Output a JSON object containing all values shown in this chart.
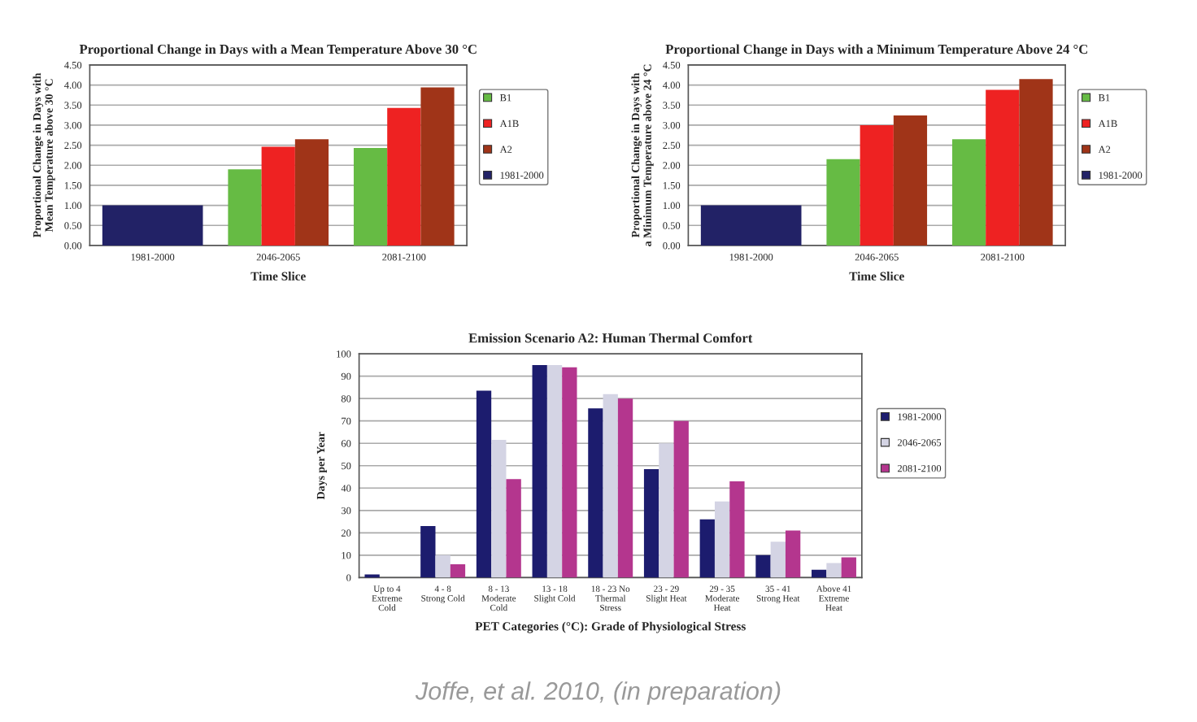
{
  "chart_data": [
    {
      "type": "bar",
      "title": "Proportional Change in Days with a Mean Temperature Above 30 °C",
      "xlabel": "Time Slice",
      "ylabel": "Proportional Change in Days with Mean Temperature above 30 °C",
      "categories": [
        "1981-2000",
        "2046-2065",
        "2081-2100"
      ],
      "series": [
        {
          "name": "B1",
          "color": "#66bb44",
          "values": [
            null,
            1.9,
            2.43
          ]
        },
        {
          "name": "A1B",
          "color": "#ee2222",
          "values": [
            null,
            2.46,
            3.43
          ]
        },
        {
          "name": "A2",
          "color": "#a03418",
          "values": [
            null,
            2.65,
            3.94
          ]
        },
        {
          "name": "1981-2000",
          "color": "#222266",
          "values": [
            1.0,
            null,
            null
          ]
        }
      ],
      "ylim": [
        0,
        4.5
      ],
      "yticks": [
        {
          "value": 0,
          "label": "0.00"
        },
        {
          "value": 0.5,
          "label": "0.50"
        },
        {
          "value": 1,
          "label": "1.00"
        },
        {
          "value": 1.5,
          "label": "1.50"
        },
        {
          "value": 2,
          "label": "2.00"
        },
        {
          "value": 2.5,
          "label": "2.50"
        },
        {
          "value": 3,
          "label": "3.00"
        },
        {
          "value": 3.5,
          "label": "3.50"
        },
        {
          "value": 4,
          "label": "4.00"
        },
        {
          "value": 4.5,
          "label": "4.50"
        }
      ],
      "grid": "y",
      "legend": "right"
    },
    {
      "type": "bar",
      "title": "Proportional Change in Days with a Minimum Temperature Above 24 °C",
      "xlabel": "Time Slice",
      "ylabel": "Proportional Change in Days with a Minimum Temperature above 24 °C",
      "categories": [
        "1981-2000",
        "2046-2065",
        "2081-2100"
      ],
      "series": [
        {
          "name": "B1",
          "color": "#66bb44",
          "values": [
            null,
            2.15,
            2.65
          ]
        },
        {
          "name": "A1B",
          "color": "#ee2222",
          "values": [
            null,
            3.0,
            3.88
          ]
        },
        {
          "name": "A2",
          "color": "#a03418",
          "values": [
            null,
            3.24,
            4.15
          ]
        },
        {
          "name": "1981-2000",
          "color": "#222266",
          "values": [
            1.0,
            null,
            null
          ]
        }
      ],
      "ylim": [
        0,
        4.5
      ],
      "yticks": [
        {
          "value": 0,
          "label": "0.00"
        },
        {
          "value": 0.5,
          "label": "0.50"
        },
        {
          "value": 1,
          "label": "1.00"
        },
        {
          "value": 1.5,
          "label": "1.50"
        },
        {
          "value": 2,
          "label": "2.00"
        },
        {
          "value": 2.5,
          "label": "2.50"
        },
        {
          "value": 3,
          "label": "3.00"
        },
        {
          "value": 3.5,
          "label": "3.50"
        },
        {
          "value": 4,
          "label": "4.00"
        },
        {
          "value": 4.5,
          "label": "4.50"
        }
      ],
      "grid": "y",
      "legend": "right"
    },
    {
      "type": "bar",
      "title": "Emission Scenario A2: Human Thermal Comfort",
      "xlabel": "PET Categories (°C): Grade of Physiological Stress",
      "ylabel": "Days per Year",
      "categories": [
        "Up to 4 Extreme Cold",
        "4 - 8 Strong Cold",
        "8 - 13 Moderate Cold",
        "13 - 18 Slight Cold",
        "18 - 23 No Thermal Stress",
        "23 - 29 Slight Heat",
        "29 - 35 Moderate Heat",
        "35 - 41 Strong Heat",
        "Above 41 Extreme Heat"
      ],
      "series": [
        {
          "name": "1981-2000",
          "color": "#1c1c6e",
          "values": [
            1.4,
            23,
            83.5,
            95,
            75.6,
            48.5,
            26,
            10,
            3.5
          ]
        },
        {
          "name": "2046-2065",
          "color": "#d4d4e4",
          "values": [
            0,
            10,
            61.5,
            95,
            82,
            60,
            34,
            16,
            6.5
          ]
        },
        {
          "name": "2081-2100",
          "color": "#b4368e",
          "values": [
            0,
            6,
            44,
            94,
            80,
            70,
            43,
            21,
            9
          ]
        }
      ],
      "ylim": [
        0,
        100
      ],
      "yticks": [
        0,
        10,
        20,
        30,
        40,
        50,
        60,
        70,
        80,
        90,
        100
      ],
      "grid": "y",
      "legend": "right",
      "annotations": [
        "Joffe, et al. 2010, (in preparation)"
      ]
    }
  ]
}
